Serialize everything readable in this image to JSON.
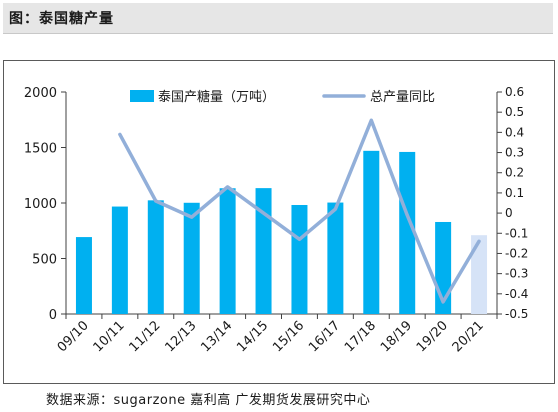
{
  "header": {
    "title": "图：泰国糖产量"
  },
  "footer": {
    "source": "数据来源：sugarzone 嘉利高 广发期货发展研究中心"
  },
  "colors": {
    "bar": "#00b0f0",
    "bar_estimate": "#d6e3f7",
    "line": "#92afd9"
  },
  "chart_data": {
    "type": "bar",
    "categories": [
      "09/10",
      "10/11",
      "11/12",
      "12/13",
      "13/14",
      "14/15",
      "15/16",
      "16/17",
      "17/18",
      "18/19",
      "19/20",
      "20/21"
    ],
    "series": [
      {
        "name": "泰国产糖量（万吨）",
        "type": "bar",
        "axis": "left",
        "values": [
          693,
          968,
          1024,
          1002,
          1133,
          1134,
          982,
          1004,
          1470,
          1460,
          829,
          710
        ]
      },
      {
        "name": "总产量同比",
        "type": "line",
        "axis": "right",
        "values": [
          null,
          0.39,
          0.06,
          -0.02,
          0.13,
          0.0,
          -0.13,
          0.02,
          0.46,
          -0.01,
          -0.44,
          -0.14
        ]
      }
    ],
    "y_left": {
      "ylim": [
        0,
        2000
      ],
      "ticks": [
        "0",
        "500",
        "1000",
        "1500",
        "2000"
      ]
    },
    "y_right": {
      "ylim": [
        -0.5,
        0.6
      ],
      "ticks": [
        "-0.5",
        "-0.4",
        "-0.3",
        "-0.2",
        "-0.1",
        "0",
        "0.1",
        "0.2",
        "0.3",
        "0.4",
        "0.5",
        "0.6"
      ]
    },
    "legend": {
      "position": "top"
    },
    "grid": false
  }
}
